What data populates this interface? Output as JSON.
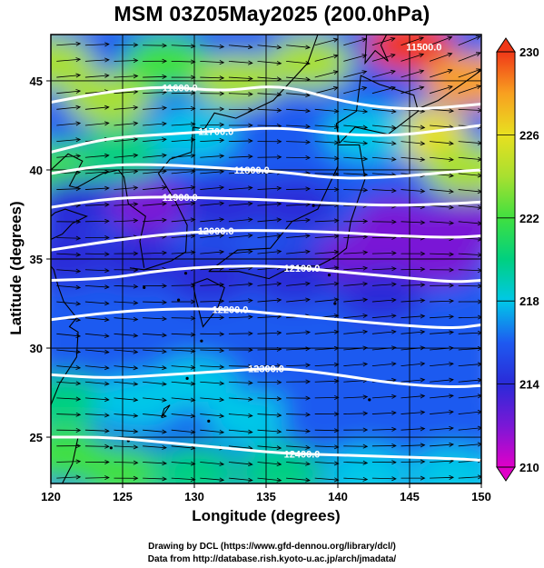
{
  "title": "MSM 03Z05May2025 (200.0hPa)",
  "xlabel": "Longitude (degrees)",
  "ylabel": "Latitude  (degrees)",
  "credit_line1": "Drawing by DCL (https://www.gfd-dennou.org/library/dcl/)",
  "credit_line2": "Data from http://database.rish.kyoto-u.ac.jp/arch/jmadata/",
  "chart_data": {
    "type": "heatmap",
    "title": "MSM 03Z05May2025 (200.0hPa)",
    "xlabel": "Longitude (degrees)",
    "ylabel": "Latitude  (degrees)",
    "xlim": [
      120,
      150
    ],
    "ylim": [
      22.4,
      47.6
    ],
    "xticks": [
      120,
      125,
      130,
      135,
      140,
      145,
      150
    ],
    "yticks": [
      25,
      30,
      35,
      40,
      45
    ],
    "colorbar": {
      "min": 210,
      "max": 230,
      "ticks": [
        210,
        214,
        218,
        222,
        226,
        230
      ],
      "colors": [
        "#e000c8",
        "#7a18d6",
        "#2a2ad8",
        "#1e5af0",
        "#00c8e8",
        "#00d080",
        "#40e040",
        "#a8e030",
        "#e8e020",
        "#f8a020",
        "#f03818"
      ]
    },
    "contours": [
      {
        "label": "11600.0",
        "points": [
          [
            120,
            43.8
          ],
          [
            124,
            44.4
          ],
          [
            128,
            44.7
          ],
          [
            132,
            44.4
          ],
          [
            136,
            44.8
          ],
          [
            140,
            43.9
          ],
          [
            143,
            43.5
          ],
          [
            146,
            43.4
          ],
          [
            150,
            43.7
          ]
        ]
      },
      {
        "label": "11700.0",
        "points": [
          [
            120,
            41.0
          ],
          [
            124,
            41.8
          ],
          [
            128,
            42.0
          ],
          [
            132,
            42.2
          ],
          [
            136,
            42.4
          ],
          [
            140,
            42.0
          ],
          [
            144,
            41.9
          ],
          [
            148,
            42.3
          ],
          [
            150,
            42.5
          ]
        ]
      },
      {
        "label": "11800.0",
        "points": [
          [
            120,
            39.8
          ],
          [
            124,
            40.3
          ],
          [
            128,
            40.3
          ],
          [
            132,
            40.1
          ],
          [
            136,
            39.9
          ],
          [
            140,
            39.5
          ],
          [
            144,
            39.6
          ],
          [
            148,
            39.9
          ],
          [
            150,
            40.0
          ]
        ]
      },
      {
        "label": "11900.0",
        "points": [
          [
            120,
            37.9
          ],
          [
            124,
            38.4
          ],
          [
            128,
            38.5
          ],
          [
            132,
            38.4
          ],
          [
            136,
            38.3
          ],
          [
            140,
            38.1
          ],
          [
            144,
            38.0
          ],
          [
            148,
            38.1
          ],
          [
            150,
            38.2
          ]
        ]
      },
      {
        "label": "12000.0",
        "points": [
          [
            120,
            35.5
          ],
          [
            124,
            36.0
          ],
          [
            128,
            36.4
          ],
          [
            132,
            36.6
          ],
          [
            136,
            36.6
          ],
          [
            140,
            36.5
          ],
          [
            144,
            36.3
          ],
          [
            148,
            36.2
          ],
          [
            150,
            36.3
          ]
        ]
      },
      {
        "label": "12100.0",
        "points": [
          [
            120,
            33.8
          ],
          [
            124,
            33.9
          ],
          [
            128,
            34.4
          ],
          [
            132,
            34.6
          ],
          [
            136,
            34.6
          ],
          [
            140,
            34.3
          ],
          [
            144,
            34.0
          ],
          [
            148,
            33.7
          ],
          [
            150,
            33.8
          ]
        ]
      },
      {
        "label": "12200.0",
        "points": [
          [
            120,
            31.6
          ],
          [
            124,
            32.0
          ],
          [
            128,
            32.2
          ],
          [
            132,
            32.2
          ],
          [
            136,
            31.9
          ],
          [
            140,
            31.6
          ],
          [
            144,
            31.3
          ],
          [
            148,
            31.1
          ],
          [
            150,
            31.3
          ]
        ]
      },
      {
        "label": "12300.0",
        "points": [
          [
            120,
            28.5
          ],
          [
            124,
            28.3
          ],
          [
            128,
            28.5
          ],
          [
            132,
            28.7
          ],
          [
            136,
            28.9
          ],
          [
            140,
            28.5
          ],
          [
            144,
            28.0
          ],
          [
            148,
            27.8
          ],
          [
            150,
            27.9
          ]
        ]
      },
      {
        "label": "12400.0",
        "points": [
          [
            120,
            25.0
          ],
          [
            124,
            25.0
          ],
          [
            128,
            24.7
          ],
          [
            132,
            24.4
          ],
          [
            136,
            24.1
          ],
          [
            140,
            24.0
          ],
          [
            144,
            23.9
          ],
          [
            148,
            23.8
          ],
          [
            150,
            23.7
          ]
        ]
      }
    ],
    "top_right_label": "11500.0",
    "grid": true
  }
}
